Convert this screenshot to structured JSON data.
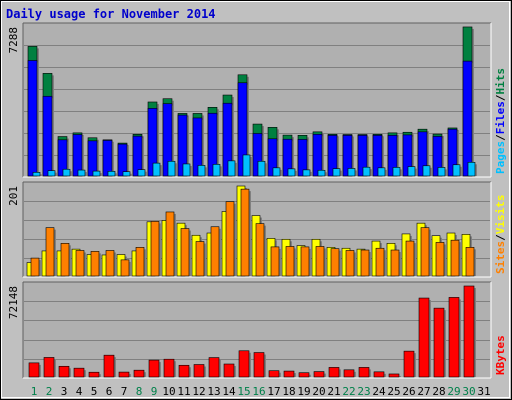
{
  "title": "Daily usage for November 2014",
  "chart_data": [
    {
      "type": "bar",
      "panel": "hits-files-pages",
      "ymax_label": "7288",
      "ylim": [
        0,
        7288
      ],
      "grid": true,
      "legend": [
        {
          "name": "Pages",
          "color": "#00c0ff"
        },
        {
          "name": "Files",
          "color": "#0000ff"
        },
        {
          "name": "Hits",
          "color": "#008040"
        }
      ],
      "legend_separator": "/",
      "categories": [
        "1",
        "2",
        "3",
        "4",
        "5",
        "6",
        "7",
        "8",
        "9",
        "10",
        "11",
        "12",
        "13",
        "14",
        "15",
        "16",
        "17",
        "18",
        "19",
        "20",
        "21",
        "22",
        "23",
        "24",
        "25",
        "26",
        "27",
        "28",
        "29",
        "30",
        "31"
      ],
      "series": [
        {
          "name": "Hits",
          "color": "#008040",
          "values": [
            6340,
            5020,
            1930,
            2110,
            1870,
            1770,
            1610,
            2040,
            3620,
            3780,
            3060,
            3060,
            3360,
            3960,
            4950,
            2540,
            2380,
            2000,
            1990,
            2160,
            2040,
            2030,
            2030,
            2040,
            2110,
            2140,
            2290,
            2050,
            2350,
            7290,
            0
          ]
        },
        {
          "name": "Files",
          "color": "#0000ff",
          "values": [
            5650,
            3900,
            1770,
            2030,
            1720,
            1740,
            1560,
            1950,
            3310,
            3540,
            2980,
            2840,
            3070,
            3560,
            4560,
            2080,
            1820,
            1800,
            1790,
            2040,
            1990,
            1990,
            1990,
            1990,
            1990,
            2010,
            2160,
            1940,
            2290,
            5620,
            0
          ]
        },
        {
          "name": "Pages",
          "color": "#00c0ff",
          "values": [
            180,
            260,
            330,
            290,
            240,
            230,
            210,
            310,
            630,
            720,
            590,
            520,
            570,
            740,
            1030,
            720,
            400,
            350,
            300,
            280,
            360,
            370,
            430,
            400,
            420,
            460,
            500,
            420,
            550,
            670,
            0
          ]
        }
      ]
    },
    {
      "type": "bar",
      "panel": "visits-sites",
      "ymax_label": "201",
      "ylim": [
        0,
        201
      ],
      "grid": true,
      "legend": [
        {
          "name": "Sites",
          "color": "#ff8000"
        },
        {
          "name": "Visits",
          "color": "#ffff00"
        }
      ],
      "legend_separator": "/",
      "categories": [
        "1",
        "2",
        "3",
        "4",
        "5",
        "6",
        "7",
        "8",
        "9",
        "10",
        "11",
        "12",
        "13",
        "14",
        "15",
        "16",
        "17",
        "18",
        "19",
        "20",
        "21",
        "22",
        "23",
        "24",
        "25",
        "26",
        "27",
        "28",
        "29",
        "30",
        "31"
      ],
      "series": [
        {
          "name": "Visits",
          "color": "#ffff00",
          "values": [
            30,
            56,
            56,
            60,
            48,
            47,
            48,
            56,
            121,
            124,
            118,
            91,
            96,
            144,
            201,
            135,
            84,
            82,
            68,
            82,
            64,
            62,
            60,
            78,
            73,
            94,
            118,
            90,
            96,
            93,
            0
          ]
        },
        {
          "name": "Sites",
          "color": "#ff8000",
          "values": [
            40,
            108,
            73,
            57,
            55,
            57,
            36,
            64,
            122,
            143,
            106,
            77,
            110,
            166,
            194,
            117,
            65,
            66,
            65,
            66,
            61,
            57,
            58,
            62,
            58,
            78,
            108,
            75,
            80,
            64,
            0
          ]
        }
      ]
    },
    {
      "type": "bar",
      "panel": "kbytes",
      "ymax_label": "72148",
      "ylim": [
        0,
        72148
      ],
      "grid": true,
      "legend": [
        {
          "name": "KBytes",
          "color": "#ff0000"
        }
      ],
      "categories": [
        "1",
        "2",
        "3",
        "4",
        "5",
        "6",
        "7",
        "8",
        "9",
        "10",
        "11",
        "12",
        "13",
        "14",
        "15",
        "16",
        "17",
        "18",
        "19",
        "20",
        "21",
        "22",
        "23",
        "24",
        "25",
        "26",
        "27",
        "28",
        "29",
        "30",
        "31"
      ],
      "series": [
        {
          "name": "KBytes",
          "color": "#ff0000",
          "values": [
            11200,
            15500,
            8500,
            7000,
            3800,
            17300,
            3900,
            5400,
            13400,
            14100,
            9300,
            9900,
            15400,
            10300,
            20800,
            19400,
            5000,
            4700,
            3400,
            4300,
            7600,
            5700,
            7600,
            4100,
            2400,
            20500,
            62600,
            54600,
            63100,
            72148,
            0
          ]
        }
      ]
    }
  ],
  "days": [
    "1",
    "2",
    "3",
    "4",
    "5",
    "6",
    "7",
    "8",
    "9",
    "10",
    "11",
    "12",
    "13",
    "14",
    "15",
    "16",
    "17",
    "18",
    "19",
    "20",
    "21",
    "22",
    "23",
    "24",
    "25",
    "26",
    "27",
    "28",
    "29",
    "30",
    "31"
  ],
  "weekend_days": [
    "1",
    "2",
    "8",
    "9",
    "15",
    "16",
    "22",
    "23",
    "29",
    "30"
  ],
  "colors": {
    "background": "#c0c0c0",
    "plot": "#b0b0b0",
    "grid": "#808080",
    "day_normal": "#000000",
    "day_weekend": "#00804a",
    "title": "#0000cc"
  }
}
